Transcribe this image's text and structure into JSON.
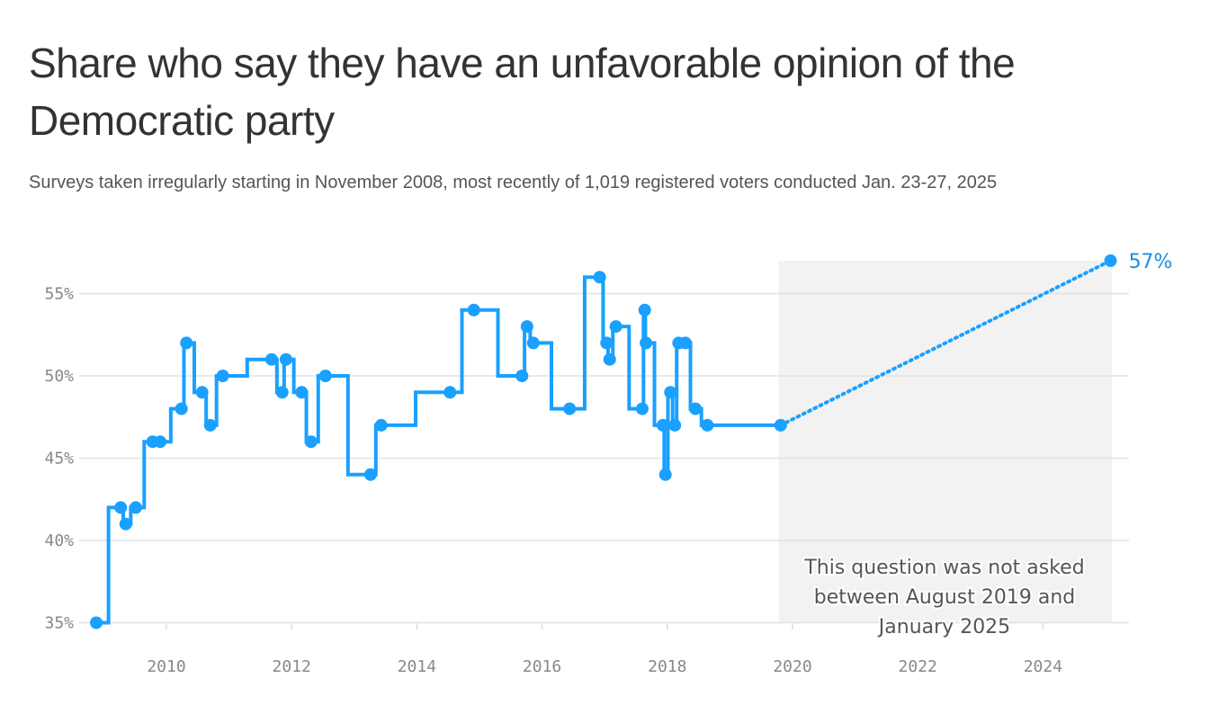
{
  "chart_data": {
    "type": "line",
    "title": "Share who say they have an unfavorable opinion of the Democratic party",
    "subtitle": "Surveys taken irregularly starting in November 2008, most recently of 1,019 registered voters conducted Jan. 23-27, 2025",
    "xlabel": "",
    "ylabel": "",
    "xlim": [
      2008.6,
      2025.5
    ],
    "ylim": [
      34.5,
      57.5
    ],
    "x_ticks": [
      2010,
      2012,
      2014,
      2016,
      2018,
      2020,
      2022,
      2024
    ],
    "x_tick_labels": [
      "2010",
      "2012",
      "2014",
      "2016",
      "2018",
      "2020",
      "2022",
      "2024"
    ],
    "y_ticks": [
      35,
      40,
      45,
      50,
      55
    ],
    "y_tick_labels": [
      "35%",
      "40%",
      "45%",
      "50%",
      "55%"
    ],
    "grid": true,
    "line_style": "step",
    "color": "#1aa0ff",
    "series": [
      {
        "name": "Unfavorable opinion of the Democratic party",
        "x": [
          2008.88,
          2009.27,
          2009.35,
          2009.51,
          2009.78,
          2009.9,
          2010.24,
          2010.32,
          2010.57,
          2010.7,
          2010.9,
          2011.68,
          2011.85,
          2011.91,
          2012.16,
          2012.31,
          2012.54,
          2013.26,
          2013.43,
          2014.53,
          2014.91,
          2015.68,
          2015.76,
          2015.86,
          2016.44,
          2016.92,
          2017.03,
          2017.08,
          2017.18,
          2017.6,
          2017.64,
          2017.66,
          2017.93,
          2017.97,
          2018.05,
          2018.12,
          2018.18,
          2018.29,
          2018.45,
          2018.64,
          2019.81
        ],
        "values": [
          35,
          42,
          41,
          42,
          46,
          46,
          48,
          52,
          49,
          47,
          50,
          51,
          49,
          51,
          49,
          46,
          50,
          44,
          47,
          49,
          54,
          50,
          53,
          52,
          48,
          56,
          52,
          51,
          53,
          48,
          54,
          52,
          47,
          44,
          49,
          47,
          52,
          52,
          48,
          47,
          47
        ]
      }
    ],
    "latest_point": {
      "x": 2025.08,
      "value": 57,
      "label": "57%"
    },
    "gap_region": {
      "x_start": 2019.78,
      "x_end": 2025.1,
      "annotation": [
        "This question was not asked",
        "between August 2019 and",
        "January 2025"
      ]
    }
  }
}
